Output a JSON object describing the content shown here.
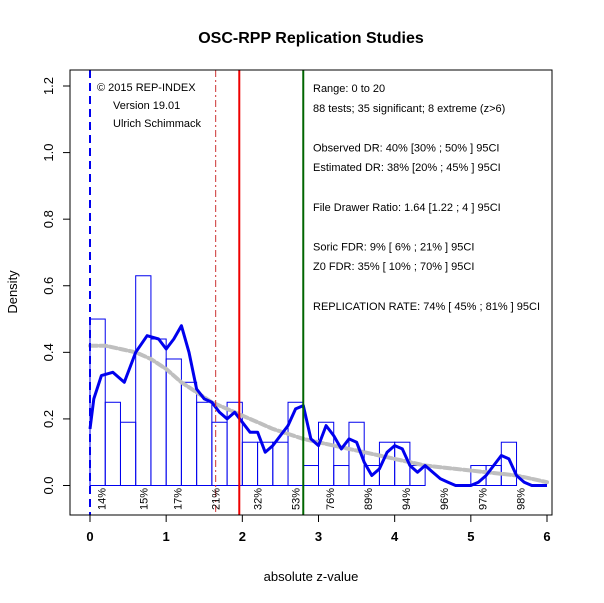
{
  "chart_data": {
    "type": "histogram",
    "title": "OSC-RPP Replication Studies",
    "xlabel": "absolute z-value",
    "ylabel": "Density",
    "xlim": [
      0,
      6
    ],
    "ylim": [
      0,
      1.2
    ],
    "x_ticks": [
      0,
      1,
      2,
      3,
      4,
      5,
      6
    ],
    "y_ticks": [
      0.0,
      0.2,
      0.4,
      0.6,
      0.8,
      1.0,
      1.2
    ],
    "x_tick_labels": [
      "0",
      "1",
      "2",
      "3",
      "4",
      "5",
      "6"
    ],
    "y_tick_labels": [
      "0.0",
      "0.2",
      "0.4",
      "0.6",
      "0.8",
      "1.0",
      "1.2"
    ],
    "bin_width": 0.2,
    "bins": [
      {
        "x0": 0.0,
        "density": 0.5
      },
      {
        "x0": 0.2,
        "density": 0.25
      },
      {
        "x0": 0.4,
        "density": 0.19
      },
      {
        "x0": 0.6,
        "density": 0.63
      },
      {
        "x0": 0.8,
        "density": 0.44
      },
      {
        "x0": 1.0,
        "density": 0.38
      },
      {
        "x0": 1.2,
        "density": 0.31
      },
      {
        "x0": 1.4,
        "density": 0.25
      },
      {
        "x0": 1.6,
        "density": 0.19
      },
      {
        "x0": 1.8,
        "density": 0.25
      },
      {
        "x0": 2.0,
        "density": 0.13
      },
      {
        "x0": 2.2,
        "density": 0.13
      },
      {
        "x0": 2.4,
        "density": 0.13
      },
      {
        "x0": 2.6,
        "density": 0.25
      },
      {
        "x0": 2.8,
        "density": 0.06
      },
      {
        "x0": 3.0,
        "density": 0.19
      },
      {
        "x0": 3.2,
        "density": 0.06
      },
      {
        "x0": 3.4,
        "density": 0.19
      },
      {
        "x0": 3.6,
        "density": 0.06
      },
      {
        "x0": 3.8,
        "density": 0.13
      },
      {
        "x0": 4.0,
        "density": 0.13
      },
      {
        "x0": 4.2,
        "density": 0.06
      },
      {
        "x0": 5.0,
        "density": 0.06
      },
      {
        "x0": 5.2,
        "density": 0.06
      },
      {
        "x0": 5.4,
        "density": 0.13
      }
    ],
    "kde": {
      "x": [
        0.0,
        0.05,
        0.15,
        0.3,
        0.45,
        0.6,
        0.75,
        0.9,
        1.0,
        1.1,
        1.2,
        1.3,
        1.4,
        1.5,
        1.6,
        1.7,
        1.8,
        1.9,
        2.0,
        2.1,
        2.2,
        2.3,
        2.4,
        2.5,
        2.6,
        2.7,
        2.8,
        2.9,
        3.0,
        3.1,
        3.2,
        3.3,
        3.4,
        3.5,
        3.6,
        3.7,
        3.8,
        3.9,
        4.0,
        4.1,
        4.2,
        4.3,
        4.4,
        4.5,
        4.6,
        4.7,
        4.8,
        4.9,
        5.0,
        5.1,
        5.2,
        5.3,
        5.4,
        5.5,
        5.6,
        5.7,
        5.8,
        5.9,
        6.0
      ],
      "y": [
        0.17,
        0.26,
        0.33,
        0.34,
        0.31,
        0.4,
        0.45,
        0.44,
        0.41,
        0.44,
        0.48,
        0.4,
        0.29,
        0.26,
        0.25,
        0.22,
        0.2,
        0.22,
        0.19,
        0.16,
        0.16,
        0.1,
        0.12,
        0.15,
        0.18,
        0.23,
        0.24,
        0.14,
        0.12,
        0.18,
        0.15,
        0.11,
        0.14,
        0.13,
        0.07,
        0.03,
        0.05,
        0.1,
        0.12,
        0.11,
        0.06,
        0.04,
        0.06,
        0.04,
        0.02,
        0.01,
        0.0,
        0.0,
        0.0,
        0.01,
        0.03,
        0.06,
        0.09,
        0.08,
        0.03,
        0.01,
        0.0,
        0.0,
        0.0
      ],
      "color": "#0000ee"
    },
    "fitted": {
      "x": [
        0.0,
        0.2,
        0.4,
        0.6,
        0.8,
        1.0,
        1.2,
        1.4,
        1.6,
        1.8,
        2.0,
        2.2,
        2.4,
        2.6,
        2.8,
        3.0,
        3.2,
        3.4,
        3.6,
        3.8,
        4.0,
        4.2,
        4.4,
        4.6,
        4.8,
        5.0,
        5.2,
        5.4,
        5.6,
        5.8,
        6.0
      ],
      "y": [
        0.42,
        0.42,
        0.41,
        0.4,
        0.38,
        0.35,
        0.31,
        0.28,
        0.25,
        0.23,
        0.21,
        0.19,
        0.17,
        0.155,
        0.14,
        0.13,
        0.12,
        0.11,
        0.1,
        0.09,
        0.08,
        0.07,
        0.06,
        0.055,
        0.05,
        0.045,
        0.04,
        0.035,
        0.03,
        0.02,
        0.01
      ],
      "color": "#bfbfbf"
    },
    "vlines": [
      {
        "x": 0.0,
        "color": "#0000ee",
        "style": "dashed"
      },
      {
        "x": 1.65,
        "color": "#cc3333",
        "style": "dashdot"
      },
      {
        "x": 1.96,
        "color": "#ee0000",
        "style": "solid"
      },
      {
        "x": 2.8,
        "color": "#006600",
        "style": "solid"
      }
    ],
    "percent_labels": [
      {
        "x": 0.15,
        "text": "14%"
      },
      {
        "x": 0.7,
        "text": "15%"
      },
      {
        "x": 1.15,
        "text": "17%"
      },
      {
        "x": 1.65,
        "text": "21%"
      },
      {
        "x": 2.2,
        "text": "32%"
      },
      {
        "x": 2.7,
        "text": "53%"
      },
      {
        "x": 3.15,
        "text": "76%"
      },
      {
        "x": 3.65,
        "text": "89%"
      },
      {
        "x": 4.15,
        "text": "94%"
      },
      {
        "x": 4.65,
        "text": "96%"
      },
      {
        "x": 5.15,
        "text": "97%"
      },
      {
        "x": 5.65,
        "text": "98%"
      }
    ],
    "annotation_left": [
      "© 2015 REP-INDEX",
      "Version 19.01",
      "Ulrich Schimmack"
    ],
    "annotation_right": [
      "Range: 0 to 20",
      "88 tests; 35 significant; 8 extreme (z>6)",
      "",
      "Observed DR: 40% [30% ; 50% ] 95CI",
      "Estimated DR: 38% [20% ; 45% ] 95CI",
      "",
      "File Drawer Ratio: 1.64 [1.22 ; 4 ] 95CI",
      "",
      "Soric FDR: 9% [ 6% ; 21% ] 95CI",
      "Z0 FDR: 35% [ 10% ; 70% ] 95CI",
      "",
      "REPLICATION RATE: 74% [ 45% ; 81% ] 95CI"
    ]
  }
}
